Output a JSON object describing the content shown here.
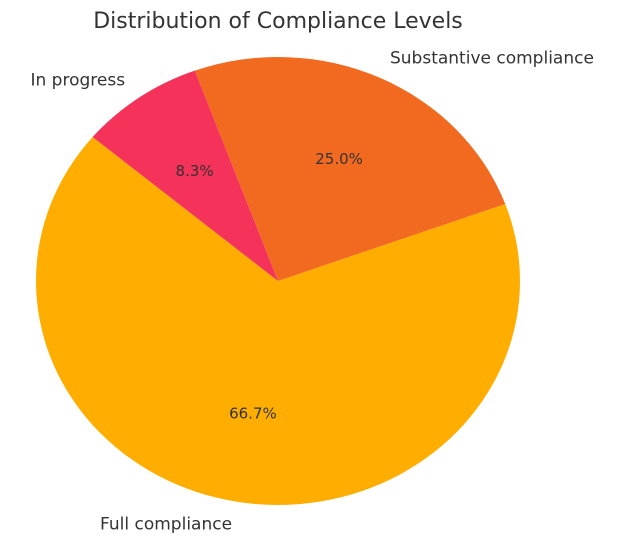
{
  "chart_data": {
    "type": "pie",
    "title": "Distribution of Compliance Levels",
    "labels": [
      "Full compliance",
      "Substantive compliance",
      "In progress"
    ],
    "values": [
      66.7,
      25.0,
      8.3
    ],
    "pct_labels": [
      "66.7%",
      "25.0%",
      "8.3%"
    ],
    "colors": [
      "#FFAE00",
      "#F26A20",
      "#F5335A"
    ],
    "start_angle_deg": 140,
    "direction": "counterclockwise"
  }
}
